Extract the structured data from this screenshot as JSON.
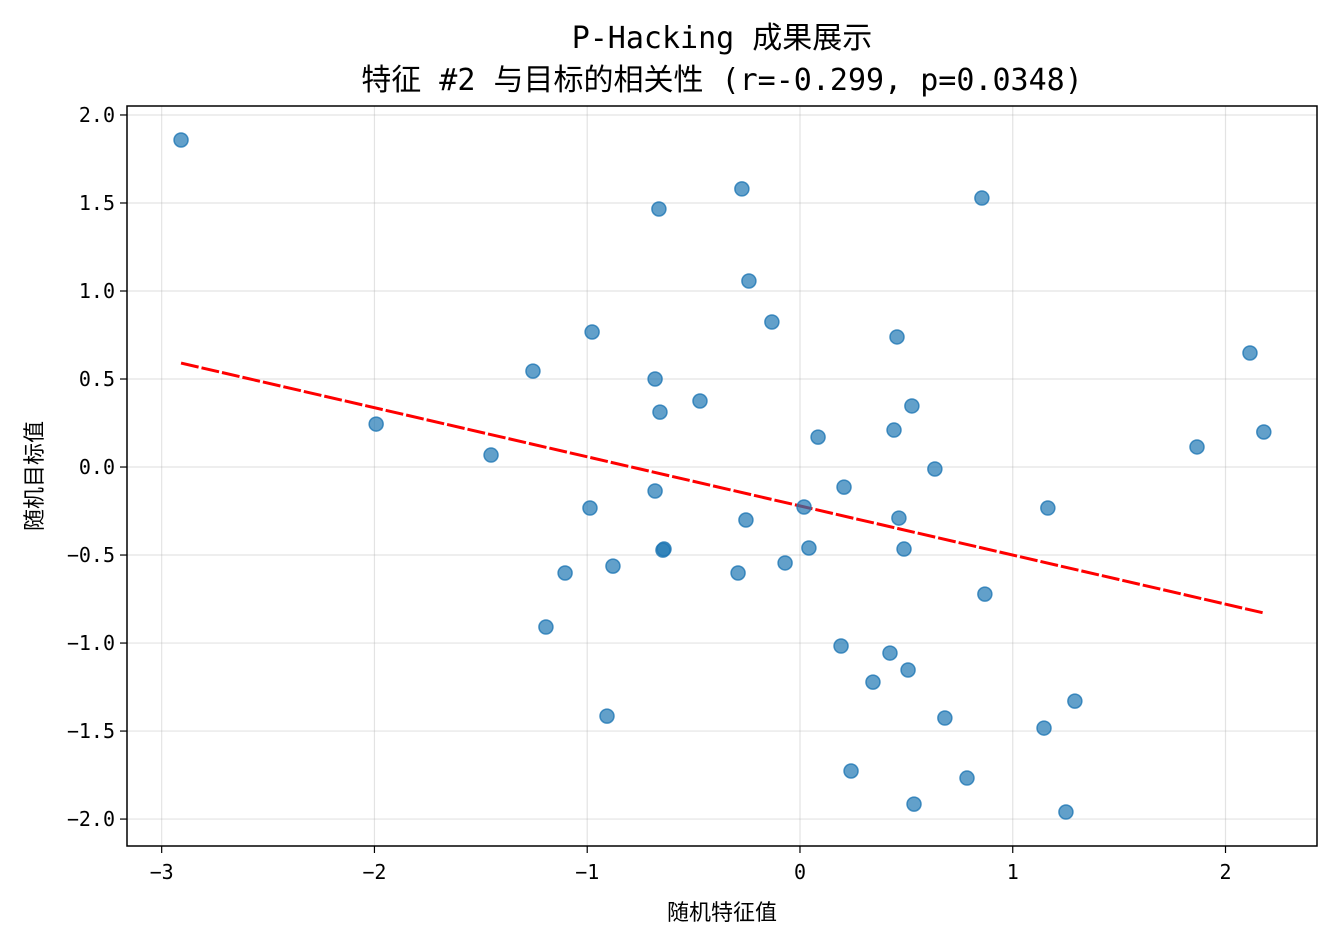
{
  "chart_data": {
    "type": "scatter",
    "title": "P-Hacking 成果展示",
    "subtitle": "特征 #2 与目标的相关性 (r=-0.299, p=0.0348)",
    "xlabel": "随机特征值",
    "ylabel": "随机目标值",
    "xlim": [
      -3.163,
      2.43
    ],
    "ylim": [
      -2.153,
      2.051
    ],
    "xticks": [
      -3,
      -2,
      -1,
      0,
      1,
      2
    ],
    "xtick_labels": [
      "−3",
      "−2",
      "−1",
      "0",
      "1",
      "2"
    ],
    "yticks": [
      2.0,
      1.5,
      1.0,
      0.5,
      0.0,
      -0.5,
      -1.0,
      -1.5,
      -2.0
    ],
    "ytick_labels": [
      "2.0",
      "1.5",
      "1.0",
      "0.5",
      "0.0",
      "−0.5",
      "−1.0",
      "−1.5",
      "−2.0"
    ],
    "grid": true,
    "point_color": "#1f77b4",
    "line_color": "#ff0000",
    "points": [
      [
        -2.909,
        1.858
      ],
      [
        -0.273,
        1.58
      ],
      [
        -0.663,
        1.466
      ],
      [
        0.855,
        1.528
      ],
      [
        -0.24,
        1.057
      ],
      [
        -0.132,
        0.824
      ],
      [
        -0.977,
        0.767
      ],
      [
        0.456,
        0.739
      ],
      [
        2.115,
        0.648
      ],
      [
        -1.255,
        0.545
      ],
      [
        -0.681,
        0.5
      ],
      [
        -0.47,
        0.375
      ],
      [
        -0.658,
        0.312
      ],
      [
        0.526,
        0.347
      ],
      [
        -1.992,
        0.244
      ],
      [
        0.442,
        0.21
      ],
      [
        0.085,
        0.17
      ],
      [
        2.18,
        0.199
      ],
      [
        -1.452,
        0.068
      ],
      [
        1.866,
        0.114
      ],
      [
        0.634,
        -0.011
      ],
      [
        -0.681,
        -0.136
      ],
      [
        0.207,
        -0.114
      ],
      [
        -0.987,
        -0.233
      ],
      [
        0.019,
        -0.227
      ],
      [
        1.165,
        -0.233
      ],
      [
        -0.254,
        -0.301
      ],
      [
        0.465,
        -0.29
      ],
      [
        -0.639,
        -0.466
      ],
      [
        -0.644,
        -0.472
      ],
      [
        0.042,
        -0.46
      ],
      [
        0.489,
        -0.466
      ],
      [
        -0.07,
        -0.545
      ],
      [
        -1.104,
        -0.602
      ],
      [
        -0.879,
        -0.563
      ],
      [
        -0.291,
        -0.602
      ],
      [
        0.869,
        -0.722
      ],
      [
        -1.194,
        -0.909
      ],
      [
        0.193,
        -1.017
      ],
      [
        0.423,
        -1.057
      ],
      [
        0.508,
        -1.153
      ],
      [
        0.343,
        -1.222
      ],
      [
        1.292,
        -1.33
      ],
      [
        -0.907,
        -1.415
      ],
      [
        0.681,
        -1.426
      ],
      [
        1.147,
        -1.483
      ],
      [
        0.24,
        -1.727
      ],
      [
        0.785,
        -1.767
      ],
      [
        0.536,
        -1.915
      ],
      [
        1.25,
        -1.96
      ]
    ],
    "regression": {
      "slope": -0.279,
      "intercept": -0.221,
      "x_range": [
        -2.909,
        2.18
      ]
    }
  }
}
